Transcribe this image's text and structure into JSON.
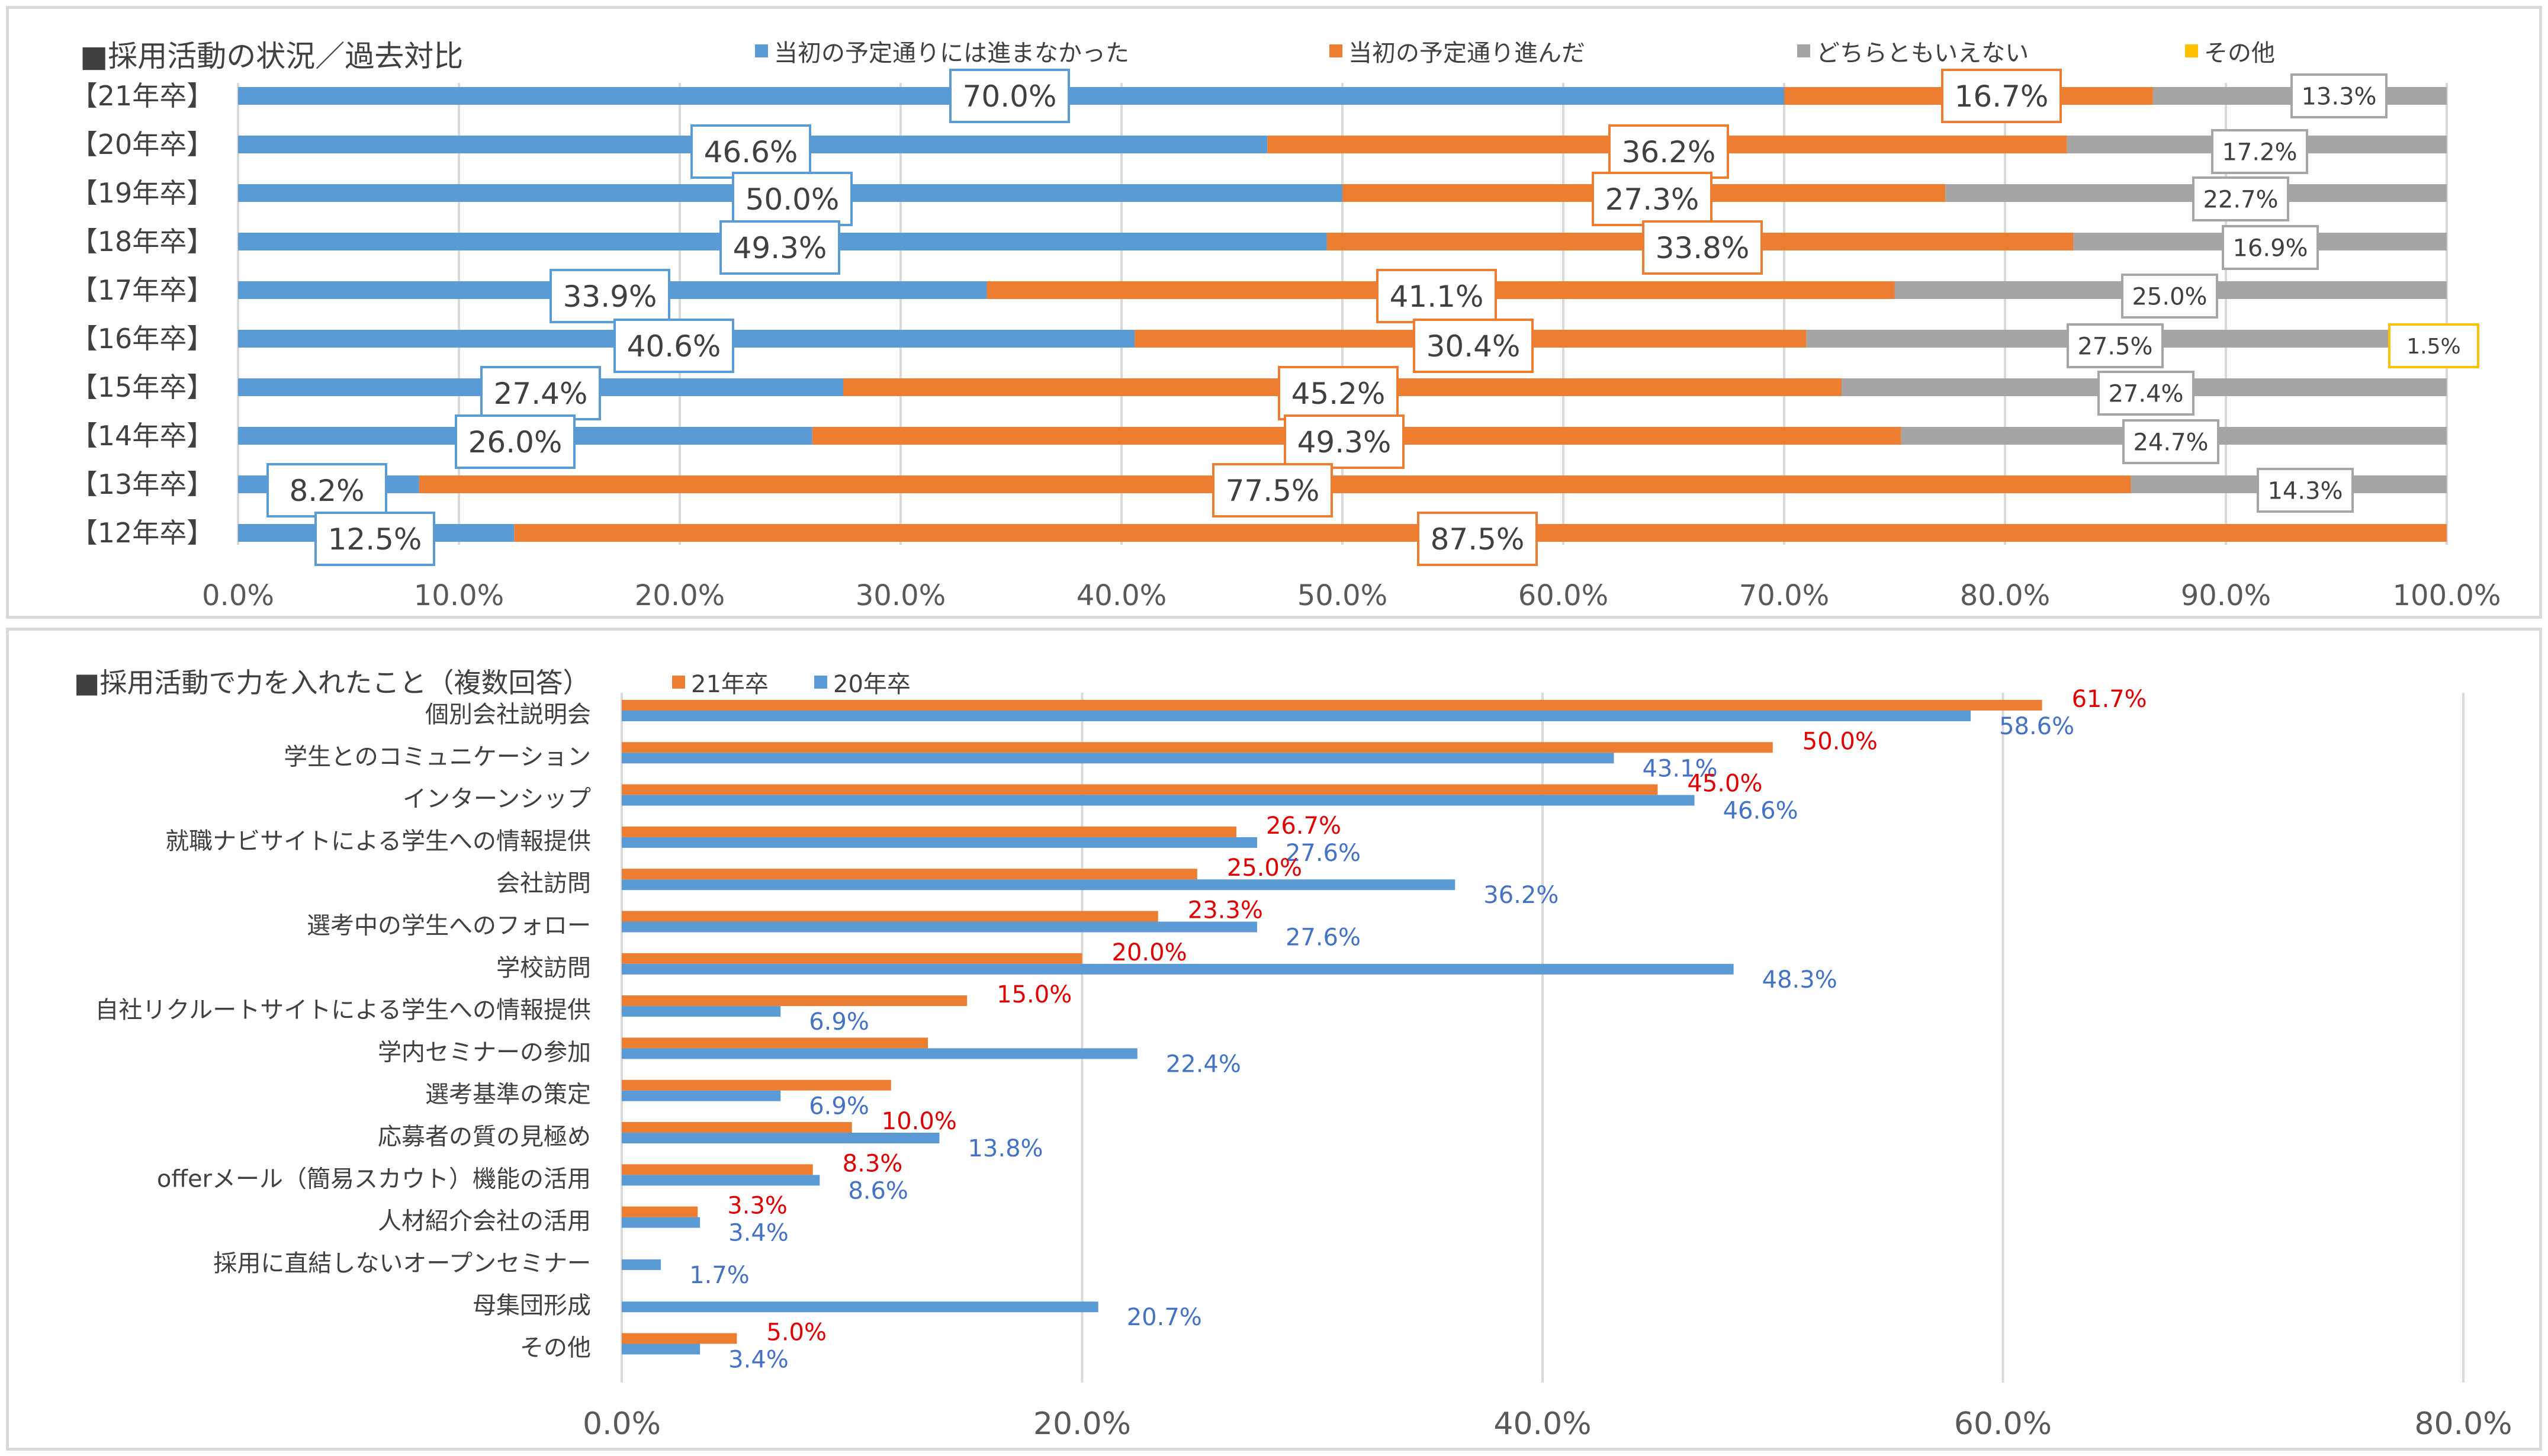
{
  "colors": {
    "blue": "#5b9bd5",
    "orange": "#ed7d31",
    "gray": "#a5a5a5",
    "yellow": "#ffc000",
    "red_label": "#e00000",
    "blue_label": "#4472c4"
  },
  "chart_data": [
    {
      "type": "bar",
      "orientation": "horizontal",
      "stacked": true,
      "title": "■採用活動の状況／過去対比",
      "categories": [
        "【21年卒】",
        "【20年卒】",
        "【19年卒】",
        "【18年卒】",
        "【17年卒】",
        "【16年卒】",
        "【15年卒】",
        "【14年卒】",
        "【13年卒】",
        "【12年卒】"
      ],
      "series": [
        {
          "name": "当初の予定通りには進まなかった",
          "color": "#5b9bd5",
          "values": [
            70.0,
            46.6,
            50.0,
            49.3,
            33.9,
            40.6,
            27.4,
            26.0,
            8.2,
            12.5
          ]
        },
        {
          "name": "当初の予定通り進んだ",
          "color": "#ed7d31",
          "values": [
            16.7,
            36.2,
            27.3,
            33.8,
            41.1,
            30.4,
            45.2,
            49.3,
            77.5,
            87.5
          ]
        },
        {
          "name": "どちらともいえない",
          "color": "#a5a5a5",
          "values": [
            13.3,
            17.2,
            22.7,
            16.9,
            25.0,
            27.5,
            27.4,
            24.7,
            14.3,
            null
          ]
        },
        {
          "name": "その他",
          "color": "#ffc000",
          "values": [
            null,
            null,
            null,
            null,
            null,
            1.5,
            null,
            null,
            null,
            null
          ]
        }
      ],
      "xlim": [
        0,
        100
      ],
      "xticks": [
        "0.0%",
        "10.0%",
        "20.0%",
        "30.0%",
        "40.0%",
        "50.0%",
        "60.0%",
        "70.0%",
        "80.0%",
        "90.0%",
        "100.0%"
      ],
      "legend_position": "top"
    },
    {
      "type": "bar",
      "orientation": "horizontal",
      "stacked": false,
      "title": "■採用活動で力を入れたこと（複数回答）",
      "categories": [
        "個別会社説明会",
        "学生とのコミュニケーション",
        "インターンシップ",
        "就職ナビサイトによる学生への情報提供",
        "会社訪問",
        "選考中の学生へのフォロー",
        "学校訪問",
        "自社リクルートサイトによる学生への情報提供",
        "学内セミナーの参加",
        "選考基準の策定",
        "応募者の質の見極め",
        "offerメール（簡易スカウト）機能の活用",
        "人材紹介会社の活用",
        "採用に直結しないオープンセミナー",
        "母集団形成",
        "その他"
      ],
      "series": [
        {
          "name": "21年卒",
          "color": "#ed7d31",
          "values": [
            61.7,
            50.0,
            45.0,
            26.7,
            25.0,
            23.3,
            20.0,
            15.0,
            13.3,
            11.7,
            10.0,
            8.3,
            3.3,
            0,
            0,
            5.0
          ],
          "labels": [
            "61.7%",
            "50.0%",
            "45.0%",
            "26.7%",
            "25.0%",
            "23.3%",
            "20.0%",
            "15.0%",
            "",
            "",
            "10.0%",
            "8.3%",
            "3.3%",
            "",
            "",
            "5.0%"
          ]
        },
        {
          "name": "20年卒",
          "color": "#5b9bd5",
          "values": [
            58.6,
            43.1,
            46.6,
            27.6,
            36.2,
            27.6,
            48.3,
            6.9,
            22.4,
            6.9,
            13.8,
            8.6,
            3.4,
            1.7,
            20.7,
            3.4
          ],
          "labels": [
            "58.6%",
            "43.1%",
            "46.6%",
            "27.6%",
            "36.2%",
            "27.6%",
            "48.3%",
            "6.9%",
            "22.4%",
            "6.9%",
            "13.8%",
            "8.6%",
            "3.4%",
            "1.7%",
            "20.7%",
            "3.4%"
          ]
        }
      ],
      "xlim": [
        0,
        80
      ],
      "xticks": [
        "0.0%",
        "20.0%",
        "40.0%",
        "60.0%",
        "80.0%"
      ],
      "legend_position": "top"
    }
  ]
}
